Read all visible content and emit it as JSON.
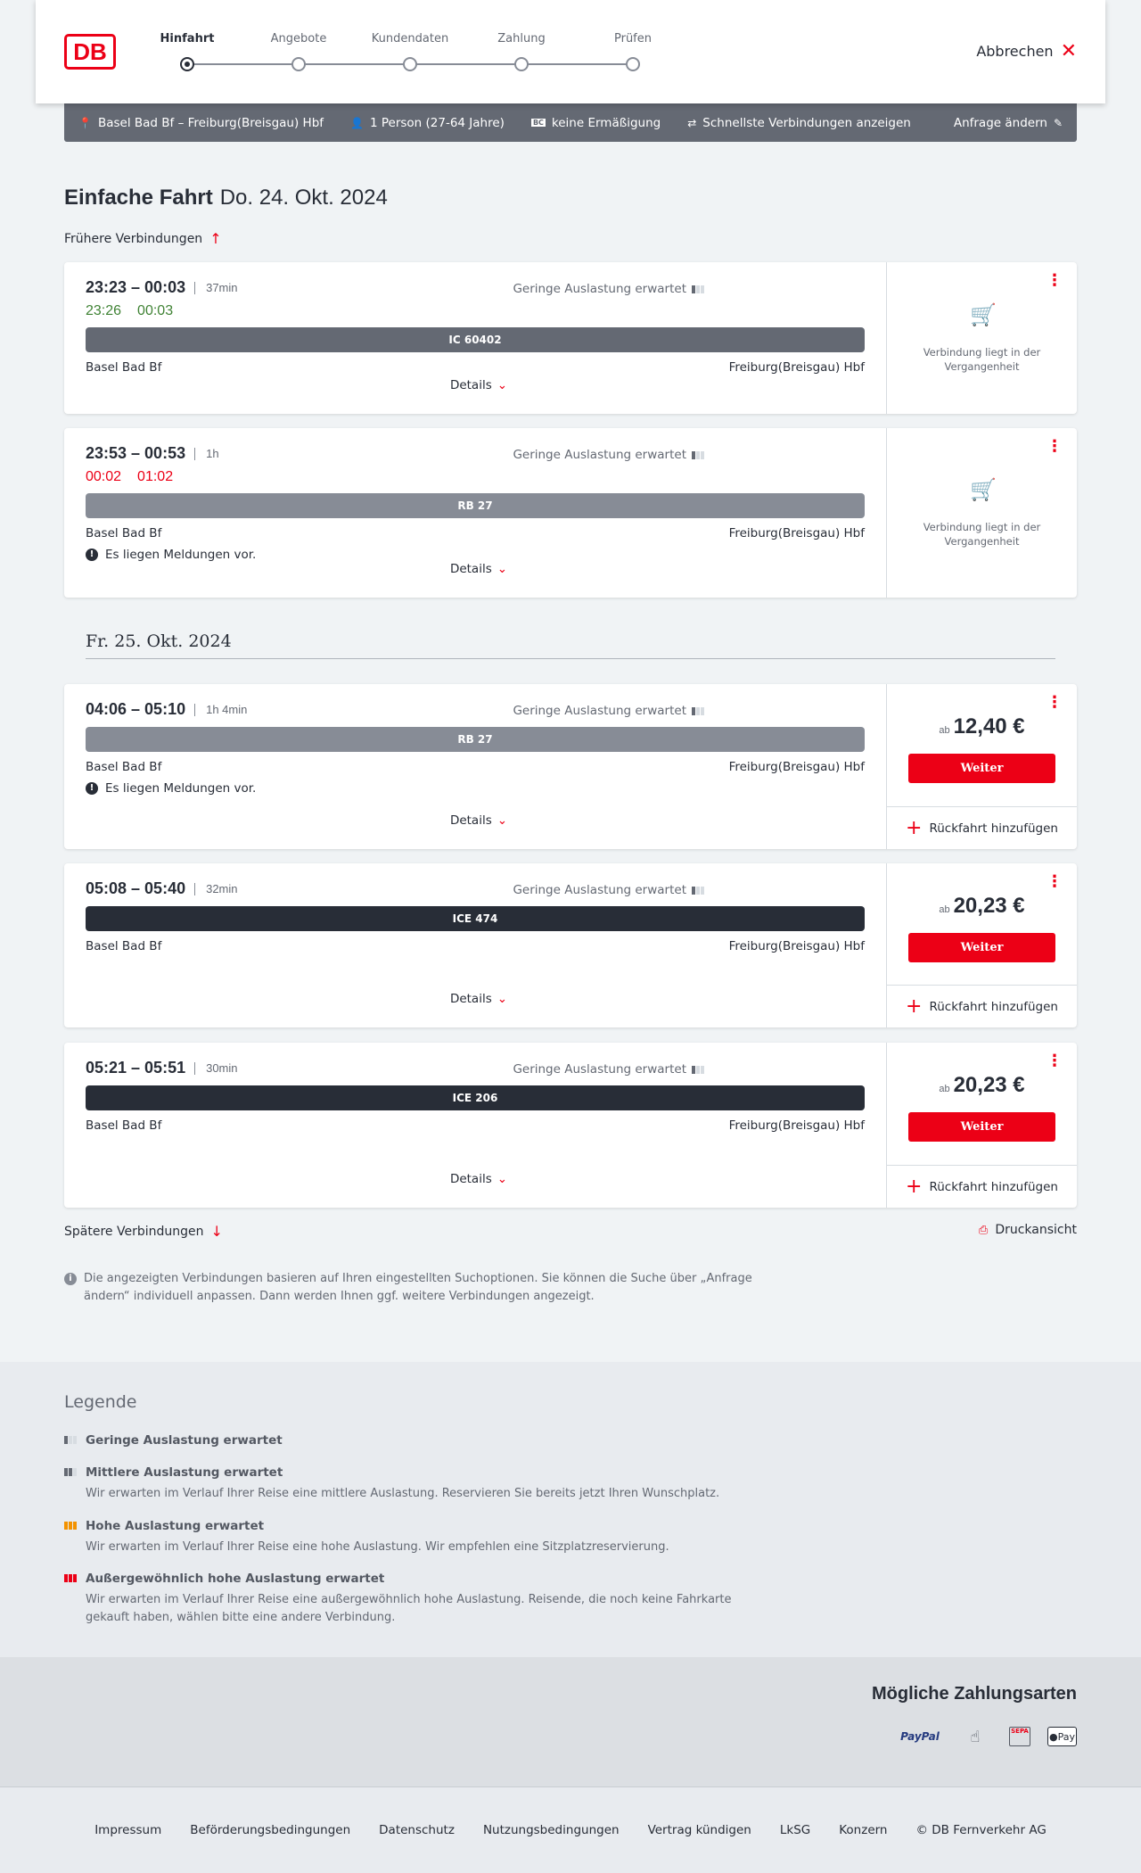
{
  "header": {
    "logo": "DB",
    "steps": [
      "Hinfahrt",
      "Angebote",
      "Kundendaten",
      "Zahlung",
      "Prüfen"
    ],
    "active_step": 0,
    "cancel": "Abbrechen"
  },
  "infobar": {
    "route": "Basel Bad Bf – Freiburg(Breisgau) Hbf",
    "persons": "1 Person (27-64 Jahre)",
    "discount": "keine Ermäßigung",
    "fastest": "Schnellste Verbindungen anzeigen",
    "edit": "Anfrage ändern"
  },
  "title": {
    "main": "Einfache Fahrt",
    "date": "Do. 24. Okt. 2024"
  },
  "earlier": "Frühere Verbindungen",
  "later": "Spätere Verbindungen",
  "print": "Druckansicht",
  "date2": "Fr. 25. Okt. 2024",
  "common": {
    "load": "Geringe Auslastung erwartet",
    "from": "Basel Bad Bf",
    "to": "Freiburg(Breisgau) Hbf",
    "details": "Details",
    "past": "Verbindung liegt in der Vergangenheit",
    "ab": "ab",
    "weiter": "Weiter",
    "return": "Rückfahrt hinzufügen",
    "msg": "Es liegen Meldungen vor."
  },
  "connections": [
    {
      "times": "23:23 – 00:03",
      "duration": "37min",
      "rt_dep": "23:26",
      "rt_arr": "00:03",
      "rt_color": "#408335",
      "train": "IC 60402",
      "train_color": "#646973",
      "past": true
    },
    {
      "times": "23:53 – 00:53",
      "duration": "1h",
      "rt_dep": "00:02",
      "rt_arr": "01:02",
      "rt_color": "#ec0016",
      "train": "RB 27",
      "train_color": "#878c96",
      "past": true,
      "message": true
    },
    {
      "times": "04:06 – 05:10",
      "duration": "1h 4min",
      "train": "RB 27",
      "train_color": "#878c96",
      "price": "12,40 €",
      "message": true
    },
    {
      "times": "05:08 – 05:40",
      "duration": "32min",
      "train": "ICE 474",
      "train_color": "#282d37",
      "price": "20,23 €"
    },
    {
      "times": "05:21 – 05:51",
      "duration": "30min",
      "train": "ICE 206",
      "train_color": "#282d37",
      "price": "20,23 €"
    }
  ],
  "note": "Die angezeigten Verbindungen basieren auf Ihren eingestellten Suchoptionen. Sie können die Suche über „Anfrage ändern“ individuell anpassen. Dann werden Ihnen ggf. weitere Verbindungen angezeigt.",
  "legend": {
    "title": "Legende",
    "items": [
      {
        "title": "Geringe Auslastung erwartet",
        "desc": ""
      },
      {
        "title": "Mittlere Auslastung erwartet",
        "desc": "Wir erwarten im Verlauf Ihrer Reise eine mittlere Auslastung. Reservieren Sie bereits jetzt Ihren Wunschplatz."
      },
      {
        "title": "Hohe Auslastung erwartet",
        "desc": "Wir erwarten im Verlauf Ihrer Reise eine hohe Auslastung. Wir empfehlen eine Sitzplatzreservierung."
      },
      {
        "title": "Außergewöhnlich hohe Auslastung erwartet",
        "desc": "Wir erwarten im Verlauf Ihrer Reise eine außergewöhnlich hohe Auslastung. Reisende, die noch keine Fahrkarte gekauft haben, wählen bitte eine andere Verbindung."
      }
    ]
  },
  "payment": {
    "title": "Mögliche Zahlungsarten",
    "methods": [
      "PayPal",
      "contactless-card-icon",
      "SEPA",
      "Pay"
    ]
  },
  "footer": [
    "Impressum",
    "Beförderungsbedingungen",
    "Datenschutz",
    "Nutzungsbedingungen",
    "Vertrag kündigen",
    "LkSG",
    "Konzern",
    "© DB Fernverkehr AG"
  ],
  "colors": {
    "accent": "#ec0016",
    "dark": "#282d37",
    "bar": "#646973"
  }
}
